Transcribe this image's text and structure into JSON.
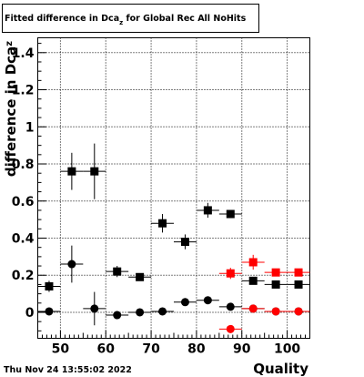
{
  "chart_data": {
    "type": "scatter",
    "title": "Fitted difference in Dca",
    "title_subscript": "z",
    "title_suffix": " for Global Rec All NoHits",
    "xlabel": "Quality",
    "ylabel": "difference in Dca",
    "ylabel_subscript": "z",
    "timestamp": "Thu Nov 24 13:55:02 2022",
    "xlim": [
      45,
      105
    ],
    "ylim": [
      -0.14,
      1.48
    ],
    "grid": true,
    "legend": "none",
    "x_ticks": [
      50,
      60,
      70,
      80,
      90,
      100
    ],
    "y_ticks": [
      0,
      0.2,
      0.4,
      0.6,
      0.8,
      1,
      1.2,
      1.4
    ],
    "series": [
      {
        "marker": "square",
        "color": "#000000",
        "x": [
          47.5,
          52.5,
          57.5,
          62.5,
          67.5,
          72.5,
          77.5,
          82.5,
          87.5,
          92.5,
          97.5,
          102.5
        ],
        "y": [
          0.14,
          0.76,
          0.76,
          0.22,
          0.19,
          0.48,
          0.38,
          0.55,
          0.53,
          0.17,
          0.15,
          0.15
        ],
        "yerr": [
          0.03,
          0.1,
          0.15,
          0.03,
          0.015,
          0.05,
          0.04,
          0.04,
          0.015,
          0.02,
          0.01,
          0.01
        ]
      },
      {
        "marker": "circle",
        "color": "#000000",
        "x": [
          47.5,
          52.5,
          57.5,
          62.5,
          67.5,
          72.5,
          77.5,
          82.5,
          87.5,
          92.5,
          97.5,
          102.5
        ],
        "y": [
          0.005,
          0.26,
          0.02,
          -0.015,
          0.0,
          0.005,
          0.055,
          0.065,
          0.03,
          0.02,
          0.005,
          0.005
        ],
        "yerr": [
          0.02,
          0.1,
          0.09,
          0.015,
          0.015,
          0.02,
          0.015,
          0.02,
          0.015,
          0.01,
          0.005,
          0.005
        ]
      },
      {
        "marker": "square",
        "color": "#ff0000",
        "x": [
          87.5,
          92.5,
          97.5,
          102.5
        ],
        "y": [
          0.21,
          0.27,
          0.215,
          0.215
        ],
        "yerr": [
          0.03,
          0.04,
          0.01,
          0.01
        ]
      },
      {
        "marker": "circle",
        "color": "#ff0000",
        "x": [
          87.5,
          92.5,
          97.5,
          102.5
        ],
        "y": [
          -0.09,
          0.02,
          0.005,
          0.005
        ],
        "yerr": [
          0.02,
          0.015,
          0.005,
          0.005
        ]
      }
    ]
  }
}
